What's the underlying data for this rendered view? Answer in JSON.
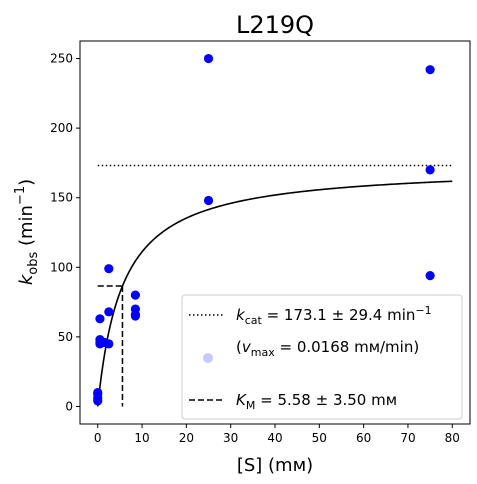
{
  "chart_data": {
    "type": "scatter",
    "title": "L219Q",
    "xlabel": {
      "main": "[S] (",
      "unit": "mм",
      "close": ")"
    },
    "ylabel": {
      "k": "k",
      "sub": "obs",
      "paren": " (min",
      "sup": "−1",
      "close": ")"
    },
    "xlim": [
      -4,
      84
    ],
    "ylim": [
      -12.6,
      262.6
    ],
    "x_ticks": [
      0,
      10,
      20,
      30,
      40,
      50,
      60,
      70,
      80
    ],
    "y_ticks": [
      0,
      50,
      100,
      150,
      200,
      250
    ],
    "grid": false,
    "legend_position": "lower-right",
    "point_color": "#0000ff",
    "series": [
      {
        "x": [
          0,
          0,
          0,
          0,
          0.5,
          0.5,
          0.5,
          0.5,
          1.5,
          2.5,
          2.5,
          2.5,
          8.5,
          8.5,
          8.5,
          8.5,
          25,
          25,
          75,
          75,
          75
        ],
        "y": [
          4,
          6,
          9,
          10,
          63,
          48,
          46,
          45,
          46,
          99,
          68,
          45,
          80,
          70,
          66,
          65,
          250,
          148,
          242,
          170,
          94
        ]
      }
    ],
    "fit": {
      "kcat": 173.1,
      "km": 5.58,
      "x_start": 0,
      "x_end": 80,
      "color": "#000000"
    },
    "kcat_line": {
      "value": 173.1,
      "x_start": 0,
      "x_end": 80
    },
    "km_marker": {
      "x": 5.58,
      "half_y": 86.55,
      "x_start": 0
    },
    "legend": {
      "kcat": {
        "sym": "k",
        "sub": "cat",
        "text": " = 173.1 ± 29.4 min",
        "sup": "−1"
      },
      "vmax": {
        "open": "(",
        "sym": "v",
        "sub": "max",
        "text": " = 0.0168 mм/min)",
        "marker_color": "#c8c8ff"
      },
      "km": {
        "sym": "K",
        "sub": "M",
        "text": " = 5.58 ± 3.50 mм"
      }
    }
  }
}
